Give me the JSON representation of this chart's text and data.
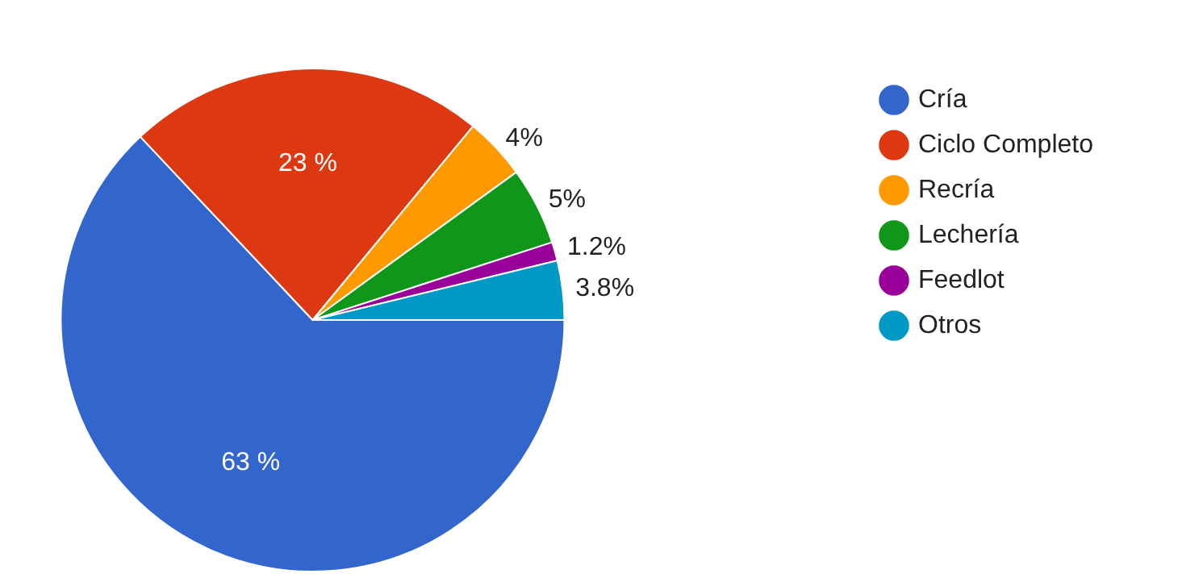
{
  "chart_data": {
    "type": "pie",
    "categories": [
      "Cría",
      "Ciclo Completo",
      "Recría",
      "Lechería",
      "Feedlot",
      "Otros"
    ],
    "values": [
      63,
      23,
      4,
      5,
      1.2,
      3.8
    ],
    "colors": [
      "#3366cc",
      "#dc3912",
      "#ff9900",
      "#109618",
      "#990099",
      "#0099c6"
    ],
    "value_labels": [
      "63 %",
      "23 %",
      "4%",
      "5%",
      "1.2%",
      "3.8%"
    ],
    "legend": "right"
  }
}
